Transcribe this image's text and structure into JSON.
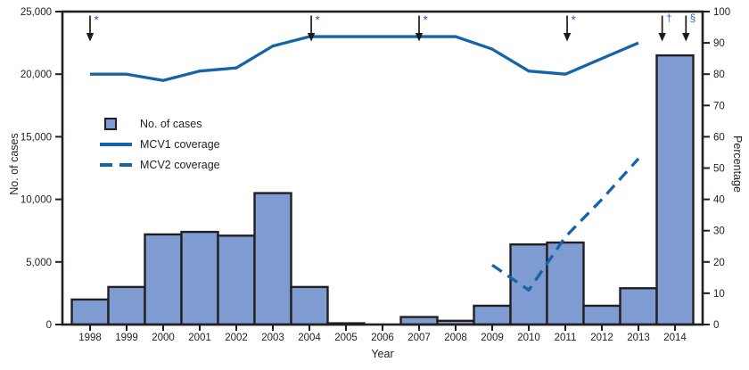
{
  "figure": {
    "legend": [
      {
        "label": "No. of cases",
        "swatch": "square"
      },
      {
        "label": "MCV1 coverage",
        "swatch": "solid-line"
      },
      {
        "label": "MCV2 coverage",
        "swatch": "dashed-line"
      }
    ]
  },
  "chart_data": {
    "type": "combo-bar-line",
    "title": "",
    "xlabel": "Year",
    "categories": [
      "1998",
      "1999",
      "2000",
      "2001",
      "2002",
      "2003",
      "2004",
      "2005",
      "2006",
      "2007",
      "2008",
      "2009",
      "2010",
      "2011",
      "2012",
      "2013",
      "2014"
    ],
    "bars": {
      "name": "No. of cases",
      "axis": "left",
      "values": [
        2000,
        3000,
        7200,
        7400,
        7100,
        10500,
        3000,
        100,
        0,
        600,
        300,
        1500,
        6400,
        6550,
        1500,
        2900,
        21500
      ]
    },
    "series": [
      {
        "name": "MCV1 coverage",
        "type": "line",
        "style": "solid",
        "axis": "right",
        "start_year": "1998",
        "values": [
          80,
          80,
          78,
          81,
          82,
          89,
          92,
          92,
          92,
          92,
          92,
          88,
          81,
          80,
          85,
          90
        ]
      },
      {
        "name": "MCV2 coverage",
        "type": "line",
        "style": "dashed",
        "axis": "right",
        "start_year": "2009",
        "values": [
          19,
          11,
          28,
          40,
          53
        ]
      }
    ],
    "left_axis": {
      "label": "No. of cases",
      "range": [
        0,
        25000
      ],
      "tick_labels": [
        "0",
        "5,000",
        "10,000",
        "15,000",
        "20,000",
        "25,000"
      ]
    },
    "right_axis": {
      "label": "Percentage",
      "range": [
        0,
        100
      ],
      "tick_labels": [
        "0",
        "10",
        "20",
        "30",
        "40",
        "50",
        "60",
        "70",
        "80",
        "90",
        "100"
      ]
    },
    "annotations": [
      {
        "symbol": "*",
        "at_year": 1998
      },
      {
        "symbol": "*",
        "at_year": 2004.05
      },
      {
        "symbol": "*",
        "at_year": 2007
      },
      {
        "symbol": "*",
        "at_year": 2011.05
      },
      {
        "symbol": "†",
        "at_year": 2013.65
      },
      {
        "symbol": "§",
        "at_year": 2014.3
      }
    ],
    "legend_position": "inside-upper-left",
    "grid": "off",
    "colors": {
      "bar_fill": "#7E9CD2",
      "bar_border": "#231F20",
      "line_blue": "#1563A8",
      "axis": "#231F20",
      "text": "#231F20",
      "annotation_symbol": "#2B65A8",
      "arrow": "#1A1A1A"
    }
  }
}
